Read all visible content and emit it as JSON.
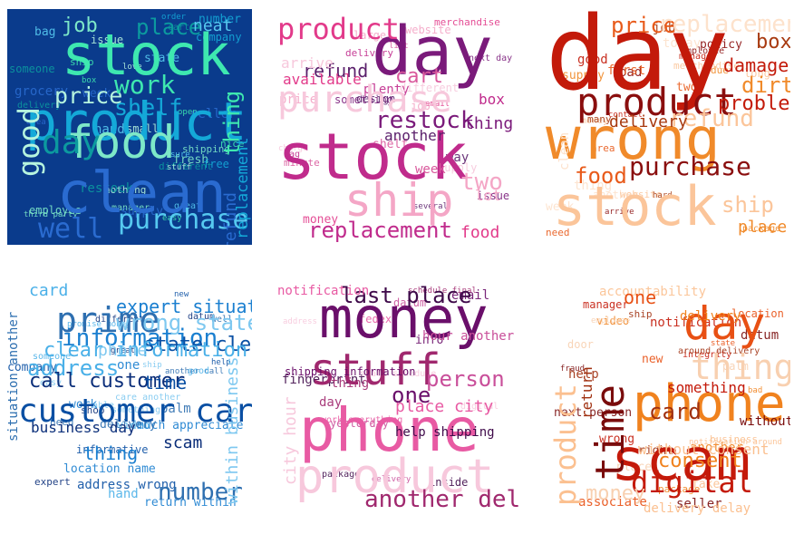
{
  "clouds": [
    {
      "id": "blue-green",
      "background": "#0a3b8c",
      "words": [
        "stock",
        "product",
        "clean",
        "food",
        "day",
        "purchase",
        "price",
        "work",
        "shelf",
        "well",
        "job",
        "place",
        "neat",
        "good",
        "thing",
        "replacement",
        "refund",
        "supply",
        "employee",
        "delivery",
        "great",
        "stuff",
        "box",
        "company",
        "area",
        "third party",
        "restock",
        "hand",
        "small",
        "ship",
        "number",
        "grocery",
        "shipping",
        "someone",
        "sure",
        "love",
        "open",
        "free",
        "week",
        "manager",
        "different",
        "state",
        "nothing",
        "easy",
        "order",
        "seller",
        "fresh",
        "cart",
        "bag",
        "issue",
        "nice"
      ],
      "colors": [
        "#3ee8b0",
        "#14a9d8",
        "#2a6bd0",
        "#7de8c8",
        "#0c9a9f",
        "#56c9f0",
        "#b6f4de"
      ]
    },
    {
      "id": "pink-purple",
      "background": "#ffffff",
      "words": [
        "day",
        "stock",
        "ship",
        "product",
        "purchase",
        "refund",
        "cart",
        "restock",
        "replacement",
        "two",
        "available",
        "arrive",
        "another",
        "week",
        "thing",
        "box",
        "lot",
        "food",
        "website",
        "merchandise",
        "different",
        "design",
        "shelf",
        "something",
        "delivery",
        "price",
        "email",
        "supply",
        "way",
        "minute",
        "next day",
        "bag",
        "job",
        "money",
        "charge",
        "several",
        "list",
        "issue",
        "plenty",
        "large"
      ],
      "colors": [
        "#7a1a7a",
        "#c02b8c",
        "#f4a6c6",
        "#e23a8a",
        "#f7c8dc",
        "#5a1f6b",
        "#d9589c"
      ]
    },
    {
      "id": "orange-red",
      "background": "#ffffff",
      "words": [
        "day",
        "wrong",
        "stock",
        "product",
        "price",
        "replacement",
        "box",
        "damage",
        "dirty",
        "refund",
        "purchase",
        "food",
        "clean",
        "delivery",
        "problem",
        "place",
        "ship",
        "merchandise",
        "employee",
        "first",
        "week",
        "many",
        "contact",
        "due",
        "long",
        "arrive",
        "area",
        "thing",
        "hard",
        "manager",
        "supply",
        "money",
        "bad",
        "need",
        "today",
        "job",
        "good",
        "package",
        "website",
        "policy",
        "two",
        "another"
      ],
      "colors": [
        "#c31a0a",
        "#f08a2a",
        "#fbc59a",
        "#8a0e0e",
        "#e85a1a",
        "#fde2cc",
        "#a83a10"
      ]
    },
    {
      "id": "blue-grey",
      "background": "#ffffff",
      "words": [
        "customer care",
        "information",
        "address",
        "call customer",
        "prime",
        "wrong state",
        "state clear",
        "expert situation",
        "clear information",
        "scam",
        "number",
        "phone",
        "time",
        "thing",
        "card",
        "business day",
        "situation another",
        "within business",
        "good",
        "great",
        "well",
        "ship",
        "help",
        "work",
        "someone",
        "datum",
        "another call",
        "care another",
        "address wrong",
        "return within",
        "promise money",
        "expert",
        "palm",
        "something",
        "company",
        "one",
        "hand",
        "shop",
        "delivery",
        "able",
        "informative",
        "much appreciate",
        "video",
        "different",
        "need",
        "easy",
        "new",
        "location name"
      ],
      "colors": [
        "#0a4fa3",
        "#1a7fd0",
        "#4ab0e8",
        "#0c2f7a",
        "#2e6fb0",
        "#7ec8f0"
      ]
    },
    {
      "id": "magenta-pink",
      "background": "#ffffff",
      "words": [
        "money",
        "phone",
        "product",
        "stuff",
        "person",
        "last place",
        "one",
        "place city",
        "city hour",
        "another deliver",
        "hour another",
        "help shipping",
        "shipping information",
        "notification",
        "digital",
        "thing",
        "datum",
        "package",
        "info",
        "work everything",
        "state schedule",
        "schedule final",
        "delivery",
        "fingerprint",
        "email",
        "fedex",
        "address",
        "day",
        "yesterday",
        "inside"
      ],
      "colors": [
        "#6a0f6a",
        "#e85aa3",
        "#f7c8dc",
        "#a0286e",
        "#c94f9a",
        "#3f0a4a"
      ]
    },
    {
      "id": "red-orange",
      "background": "#ffffff",
      "words": [
        "scam",
        "phone",
        "product",
        "time",
        "day",
        "thing",
        "card",
        "digital",
        "consent",
        "without consent",
        "without",
        "one",
        "money",
        "return",
        "something",
        "delivery",
        "delivery delay",
        "notification around",
        "next person",
        "associate",
        "palm",
        "ship",
        "wrong",
        "bad",
        "fake",
        "fraud",
        "new",
        "employee",
        "around delivery",
        "notification",
        "video",
        "business",
        "datum",
        "location",
        "place",
        "right",
        "integrity",
        "package",
        "accountability",
        "seller",
        "state",
        "door",
        "help",
        "manager",
        "another"
      ],
      "colors": [
        "#c41a0a",
        "#f0821e",
        "#fbc090",
        "#7a0c0c",
        "#e85014",
        "#f8d0b0",
        "#a03010"
      ]
    }
  ]
}
